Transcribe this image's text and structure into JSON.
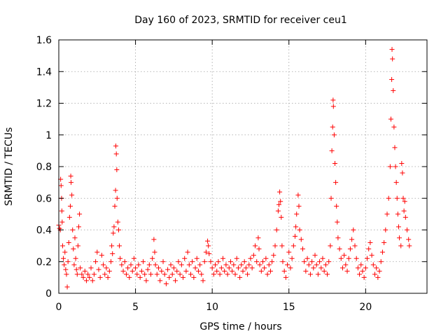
{
  "chart_data": {
    "type": "scatter",
    "title": "Day 160 of 2023, SRMTID for receiver ceu1",
    "xlabel": "GPS time / hours",
    "ylabel": "SRMTID / TECUs",
    "xlim": [
      0,
      24
    ],
    "ylim": [
      0,
      1.6
    ],
    "xticks": [
      0,
      5,
      10,
      15,
      20
    ],
    "yticks": [
      0,
      0.2,
      0.4,
      0.6,
      0.8,
      1,
      1.2,
      1.4,
      1.6
    ],
    "xtick_labels": [
      "0",
      "5",
      "10",
      "15",
      "20"
    ],
    "ytick_labels": [
      "0",
      "0.2",
      "0.4",
      "0.6",
      "0.8",
      "1",
      "1.2",
      "1.4",
      "1.6"
    ],
    "grid": true,
    "marker": "+",
    "color": "#ff0000",
    "series": [
      {
        "name": "SRMTID",
        "points": [
          [
            0.0,
            0.43
          ],
          [
            0.05,
            0.41
          ],
          [
            0.1,
            0.4
          ],
          [
            0.12,
            0.72
          ],
          [
            0.15,
            0.68
          ],
          [
            0.18,
            0.6
          ],
          [
            0.2,
            0.52
          ],
          [
            0.22,
            0.45
          ],
          [
            0.25,
            0.3
          ],
          [
            0.3,
            0.22
          ],
          [
            0.35,
            0.18
          ],
          [
            0.4,
            0.26
          ],
          [
            0.45,
            0.15
          ],
          [
            0.5,
            0.12
          ],
          [
            0.55,
            0.04
          ],
          [
            0.6,
            0.2
          ],
          [
            0.65,
            0.32
          ],
          [
            0.7,
            0.48
          ],
          [
            0.75,
            0.55
          ],
          [
            0.78,
            0.74
          ],
          [
            0.8,
            0.7
          ],
          [
            0.85,
            0.62
          ],
          [
            0.9,
            0.4
          ],
          [
            0.95,
            0.28
          ],
          [
            1.0,
            0.18
          ],
          [
            1.05,
            0.35
          ],
          [
            1.1,
            0.22
          ],
          [
            1.15,
            0.15
          ],
          [
            1.2,
            0.12
          ],
          [
            1.25,
            0.3
          ],
          [
            1.3,
            0.42
          ],
          [
            1.35,
            0.5
          ],
          [
            1.4,
            0.16
          ],
          [
            1.5,
            0.12
          ],
          [
            1.6,
            0.1
          ],
          [
            1.7,
            0.14
          ],
          [
            1.8,
            0.08
          ],
          [
            1.9,
            0.12
          ],
          [
            2.0,
            0.1
          ],
          [
            2.1,
            0.16
          ],
          [
            2.2,
            0.08
          ],
          [
            2.3,
            0.12
          ],
          [
            2.4,
            0.2
          ],
          [
            2.5,
            0.26
          ],
          [
            2.6,
            0.15
          ],
          [
            2.7,
            0.1
          ],
          [
            2.8,
            0.24
          ],
          [
            2.9,
            0.18
          ],
          [
            3.0,
            0.12
          ],
          [
            3.1,
            0.16
          ],
          [
            3.2,
            0.1
          ],
          [
            3.3,
            0.14
          ],
          [
            3.4,
            0.2
          ],
          [
            3.45,
            0.3
          ],
          [
            3.5,
            0.25
          ],
          [
            3.55,
            0.38
          ],
          [
            3.6,
            0.42
          ],
          [
            3.65,
            0.55
          ],
          [
            3.7,
            0.65
          ],
          [
            3.72,
            0.93
          ],
          [
            3.75,
            0.88
          ],
          [
            3.78,
            0.78
          ],
          [
            3.8,
            0.6
          ],
          [
            3.85,
            0.45
          ],
          [
            3.9,
            0.4
          ],
          [
            3.95,
            0.3
          ],
          [
            4.0,
            0.22
          ],
          [
            4.1,
            0.18
          ],
          [
            4.2,
            0.14
          ],
          [
            4.3,
            0.2
          ],
          [
            4.4,
            0.12
          ],
          [
            4.5,
            0.16
          ],
          [
            4.6,
            0.1
          ],
          [
            4.7,
            0.18
          ],
          [
            4.8,
            0.14
          ],
          [
            4.9,
            0.22
          ],
          [
            5.0,
            0.16
          ],
          [
            5.1,
            0.12
          ],
          [
            5.2,
            0.18
          ],
          [
            5.3,
            0.1
          ],
          [
            5.4,
            0.14
          ],
          [
            5.5,
            0.2
          ],
          [
            5.6,
            0.12
          ],
          [
            5.7,
            0.08
          ],
          [
            5.8,
            0.15
          ],
          [
            5.9,
            0.18
          ],
          [
            6.0,
            0.12
          ],
          [
            6.1,
            0.22
          ],
          [
            6.2,
            0.34
          ],
          [
            6.25,
            0.26
          ],
          [
            6.3,
            0.18
          ],
          [
            6.4,
            0.12
          ],
          [
            6.5,
            0.16
          ],
          [
            6.6,
            0.08
          ],
          [
            6.7,
            0.14
          ],
          [
            6.8,
            0.2
          ],
          [
            6.9,
            0.12
          ],
          [
            7.0,
            0.06
          ],
          [
            7.1,
            0.15
          ],
          [
            7.2,
            0.1
          ],
          [
            7.3,
            0.18
          ],
          [
            7.4,
            0.12
          ],
          [
            7.5,
            0.16
          ],
          [
            7.6,
            0.08
          ],
          [
            7.7,
            0.14
          ],
          [
            7.8,
            0.2
          ],
          [
            7.9,
            0.12
          ],
          [
            8.0,
            0.18
          ],
          [
            8.1,
            0.1
          ],
          [
            8.2,
            0.22
          ],
          [
            8.3,
            0.14
          ],
          [
            8.4,
            0.26
          ],
          [
            8.5,
            0.18
          ],
          [
            8.6,
            0.12
          ],
          [
            8.7,
            0.2
          ],
          [
            8.8,
            0.1
          ],
          [
            8.9,
            0.16
          ],
          [
            9.0,
            0.22
          ],
          [
            9.1,
            0.14
          ],
          [
            9.2,
            0.18
          ],
          [
            9.3,
            0.12
          ],
          [
            9.4,
            0.08
          ],
          [
            9.5,
            0.2
          ],
          [
            9.6,
            0.26
          ],
          [
            9.7,
            0.33
          ],
          [
            9.75,
            0.3
          ],
          [
            9.8,
            0.25
          ],
          [
            9.9,
            0.2
          ],
          [
            10.0,
            0.16
          ],
          [
            10.1,
            0.12
          ],
          [
            10.2,
            0.18
          ],
          [
            10.3,
            0.14
          ],
          [
            10.4,
            0.2
          ],
          [
            10.5,
            0.12
          ],
          [
            10.6,
            0.16
          ],
          [
            10.7,
            0.22
          ],
          [
            10.8,
            0.14
          ],
          [
            10.9,
            0.18
          ],
          [
            11.0,
            0.12
          ],
          [
            11.1,
            0.16
          ],
          [
            11.2,
            0.2
          ],
          [
            11.3,
            0.14
          ],
          [
            11.4,
            0.18
          ],
          [
            11.5,
            0.12
          ],
          [
            11.6,
            0.22
          ],
          [
            11.7,
            0.16
          ],
          [
            11.8,
            0.1
          ],
          [
            11.9,
            0.18
          ],
          [
            12.0,
            0.14
          ],
          [
            12.1,
            0.2
          ],
          [
            12.2,
            0.16
          ],
          [
            12.3,
            0.12
          ],
          [
            12.4,
            0.18
          ],
          [
            12.5,
            0.22
          ],
          [
            12.6,
            0.16
          ],
          [
            12.7,
            0.24
          ],
          [
            12.8,
            0.3
          ],
          [
            12.9,
            0.2
          ],
          [
            13.0,
            0.35
          ],
          [
            13.05,
            0.28
          ],
          [
            13.1,
            0.18
          ],
          [
            13.2,
            0.14
          ],
          [
            13.3,
            0.2
          ],
          [
            13.4,
            0.16
          ],
          [
            13.5,
            0.22
          ],
          [
            13.6,
            0.12
          ],
          [
            13.7,
            0.18
          ],
          [
            13.8,
            0.14
          ],
          [
            13.9,
            0.2
          ],
          [
            14.0,
            0.24
          ],
          [
            14.1,
            0.3
          ],
          [
            14.2,
            0.4
          ],
          [
            14.3,
            0.52
          ],
          [
            14.35,
            0.56
          ],
          [
            14.4,
            0.64
          ],
          [
            14.45,
            0.58
          ],
          [
            14.5,
            0.48
          ],
          [
            14.55,
            0.3
          ],
          [
            14.6,
            0.2
          ],
          [
            14.7,
            0.14
          ],
          [
            14.8,
            0.1
          ],
          [
            14.9,
            0.18
          ],
          [
            15.0,
            0.26
          ],
          [
            15.1,
            0.16
          ],
          [
            15.2,
            0.22
          ],
          [
            15.3,
            0.3
          ],
          [
            15.4,
            0.36
          ],
          [
            15.45,
            0.42
          ],
          [
            15.5,
            0.5
          ],
          [
            15.6,
            0.62
          ],
          [
            15.65,
            0.55
          ],
          [
            15.7,
            0.4
          ],
          [
            15.8,
            0.34
          ],
          [
            15.9,
            0.28
          ],
          [
            16.0,
            0.2
          ],
          [
            16.1,
            0.14
          ],
          [
            16.2,
            0.22
          ],
          [
            16.3,
            0.18
          ],
          [
            16.4,
            0.12
          ],
          [
            16.5,
            0.2
          ],
          [
            16.6,
            0.16
          ],
          [
            16.7,
            0.24
          ],
          [
            16.8,
            0.18
          ],
          [
            16.9,
            0.12
          ],
          [
            17.0,
            0.2
          ],
          [
            17.1,
            0.16
          ],
          [
            17.2,
            0.22
          ],
          [
            17.3,
            0.14
          ],
          [
            17.4,
            0.18
          ],
          [
            17.5,
            0.12
          ],
          [
            17.6,
            0.2
          ],
          [
            17.7,
            0.3
          ],
          [
            17.75,
            0.6
          ],
          [
            17.8,
            0.9
          ],
          [
            17.85,
            1.05
          ],
          [
            17.88,
            1.22
          ],
          [
            17.9,
            1.18
          ],
          [
            17.95,
            1.0
          ],
          [
            18.0,
            0.82
          ],
          [
            18.05,
            0.7
          ],
          [
            18.1,
            0.55
          ],
          [
            18.15,
            0.45
          ],
          [
            18.2,
            0.35
          ],
          [
            18.3,
            0.28
          ],
          [
            18.4,
            0.22
          ],
          [
            18.5,
            0.16
          ],
          [
            18.6,
            0.24
          ],
          [
            18.7,
            0.18
          ],
          [
            18.8,
            0.14
          ],
          [
            18.9,
            0.22
          ],
          [
            19.0,
            0.28
          ],
          [
            19.1,
            0.34
          ],
          [
            19.2,
            0.4
          ],
          [
            19.3,
            0.3
          ],
          [
            19.4,
            0.22
          ],
          [
            19.5,
            0.16
          ],
          [
            19.6,
            0.12
          ],
          [
            19.7,
            0.18
          ],
          [
            19.8,
            0.14
          ],
          [
            19.9,
            0.1
          ],
          [
            20.0,
            0.16
          ],
          [
            20.1,
            0.22
          ],
          [
            20.2,
            0.28
          ],
          [
            20.3,
            0.32
          ],
          [
            20.4,
            0.24
          ],
          [
            20.5,
            0.18
          ],
          [
            20.6,
            0.12
          ],
          [
            20.7,
            0.16
          ],
          [
            20.8,
            0.1
          ],
          [
            20.9,
            0.14
          ],
          [
            21.0,
            0.2
          ],
          [
            21.1,
            0.26
          ],
          [
            21.2,
            0.32
          ],
          [
            21.3,
            0.4
          ],
          [
            21.4,
            0.5
          ],
          [
            21.5,
            0.6
          ],
          [
            21.6,
            0.8
          ],
          [
            21.65,
            1.1
          ],
          [
            21.7,
            1.35
          ],
          [
            21.72,
            1.54
          ],
          [
            21.75,
            1.48
          ],
          [
            21.8,
            1.28
          ],
          [
            21.85,
            1.05
          ],
          [
            21.9,
            0.92
          ],
          [
            21.95,
            0.8
          ],
          [
            22.0,
            0.7
          ],
          [
            22.05,
            0.6
          ],
          [
            22.1,
            0.5
          ],
          [
            22.15,
            0.42
          ],
          [
            22.2,
            0.35
          ],
          [
            22.3,
            0.3
          ],
          [
            22.35,
            0.82
          ],
          [
            22.4,
            0.76
          ],
          [
            22.45,
            0.6
          ],
          [
            22.5,
            0.52
          ],
          [
            22.55,
            0.58
          ],
          [
            22.6,
            0.48
          ],
          [
            22.7,
            0.4
          ],
          [
            22.8,
            0.34
          ],
          [
            22.85,
            0.3
          ]
        ]
      }
    ]
  }
}
